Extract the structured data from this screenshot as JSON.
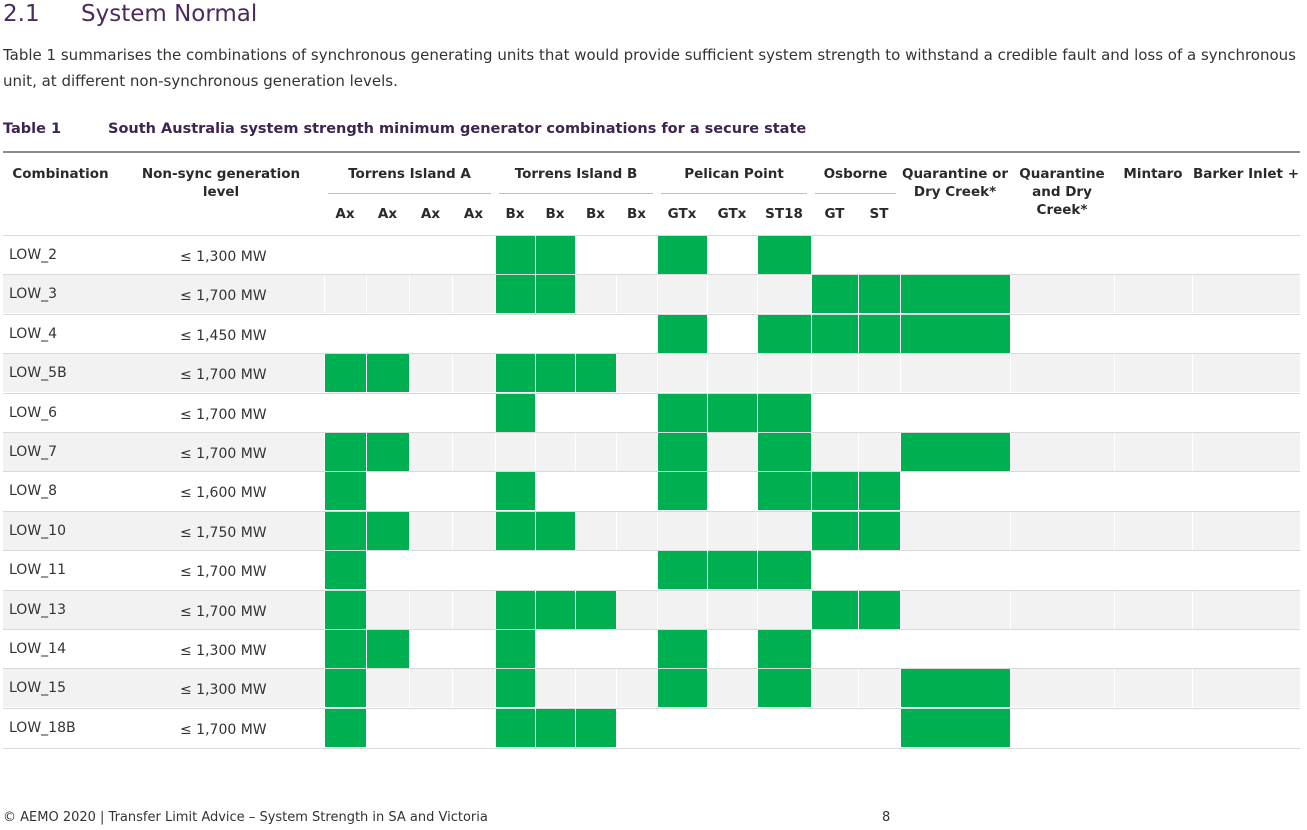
{
  "section": {
    "number": "2.1",
    "title": "System Normal"
  },
  "intro": "Table 1 summarises the combinations of synchronous generating units that would provide sufficient system strength to withstand a credible fault and loss of a synchronous unit, at different non-synchronous generation levels.",
  "caption": {
    "label": "Table 1",
    "title": "South Australia system strength minimum generator combinations for a secure state"
  },
  "headers": {
    "combination": "Combination",
    "nonsync": "Non-sync generation level",
    "groups": [
      "Torrens Island A",
      "Torrens Island B",
      "Pelican Point",
      "Osborne",
      "Quarantine or Dry Creek*",
      "Quarantine and Dry Creek*",
      "Mintaro",
      "Barker Inlet +"
    ],
    "units": [
      "Ax",
      "Ax",
      "Ax",
      "Ax",
      "Bx",
      "Bx",
      "Bx",
      "Bx",
      "GTx",
      "GTx",
      "ST18",
      "GT",
      "ST"
    ]
  },
  "rows": [
    {
      "name": "LOW_2",
      "gen": "≤ 1,300 MW",
      "on": [
        4,
        5,
        8,
        10
      ]
    },
    {
      "name": "LOW_3",
      "gen": "≤ 1,700 MW",
      "on": [
        4,
        5,
        11,
        12,
        13
      ]
    },
    {
      "name": "LOW_4",
      "gen": "≤ 1,450 MW",
      "on": [
        8,
        10,
        11,
        12,
        13
      ]
    },
    {
      "name": "LOW_5B",
      "gen": "≤ 1,700 MW",
      "on": [
        0,
        1,
        4,
        5,
        6
      ]
    },
    {
      "name": "LOW_6",
      "gen": "≤ 1,700 MW",
      "on": [
        4,
        8,
        9,
        10
      ]
    },
    {
      "name": "LOW_7",
      "gen": "≤ 1,700 MW",
      "on": [
        0,
        1,
        8,
        10,
        13
      ]
    },
    {
      "name": "LOW_8",
      "gen": "≤ 1,600 MW",
      "on": [
        0,
        4,
        8,
        10,
        11,
        12
      ]
    },
    {
      "name": "LOW_10",
      "gen": "≤ 1,750 MW",
      "on": [
        0,
        1,
        4,
        5,
        11,
        12
      ]
    },
    {
      "name": "LOW_11",
      "gen": "≤ 1,700 MW",
      "on": [
        0,
        8,
        9,
        10
      ]
    },
    {
      "name": "LOW_13",
      "gen": "≤ 1,700 MW",
      "on": [
        0,
        4,
        5,
        6,
        11,
        12
      ]
    },
    {
      "name": "LOW_14",
      "gen": "≤ 1,300 MW",
      "on": [
        0,
        1,
        4,
        8,
        10
      ]
    },
    {
      "name": "LOW_15",
      "gen": "≤ 1,300 MW",
      "on": [
        0,
        4,
        8,
        10,
        13
      ]
    },
    {
      "name": "LOW_18B",
      "gen": "≤ 1,700 MW",
      "on": [
        0,
        4,
        5,
        6,
        13
      ]
    }
  ],
  "on_color": "#00b050",
  "shade_color": "#f2f2f2",
  "footer": "© AEMO 2020 | Transfer Limit Advice – System Strength in SA and Victoria",
  "page": "8"
}
